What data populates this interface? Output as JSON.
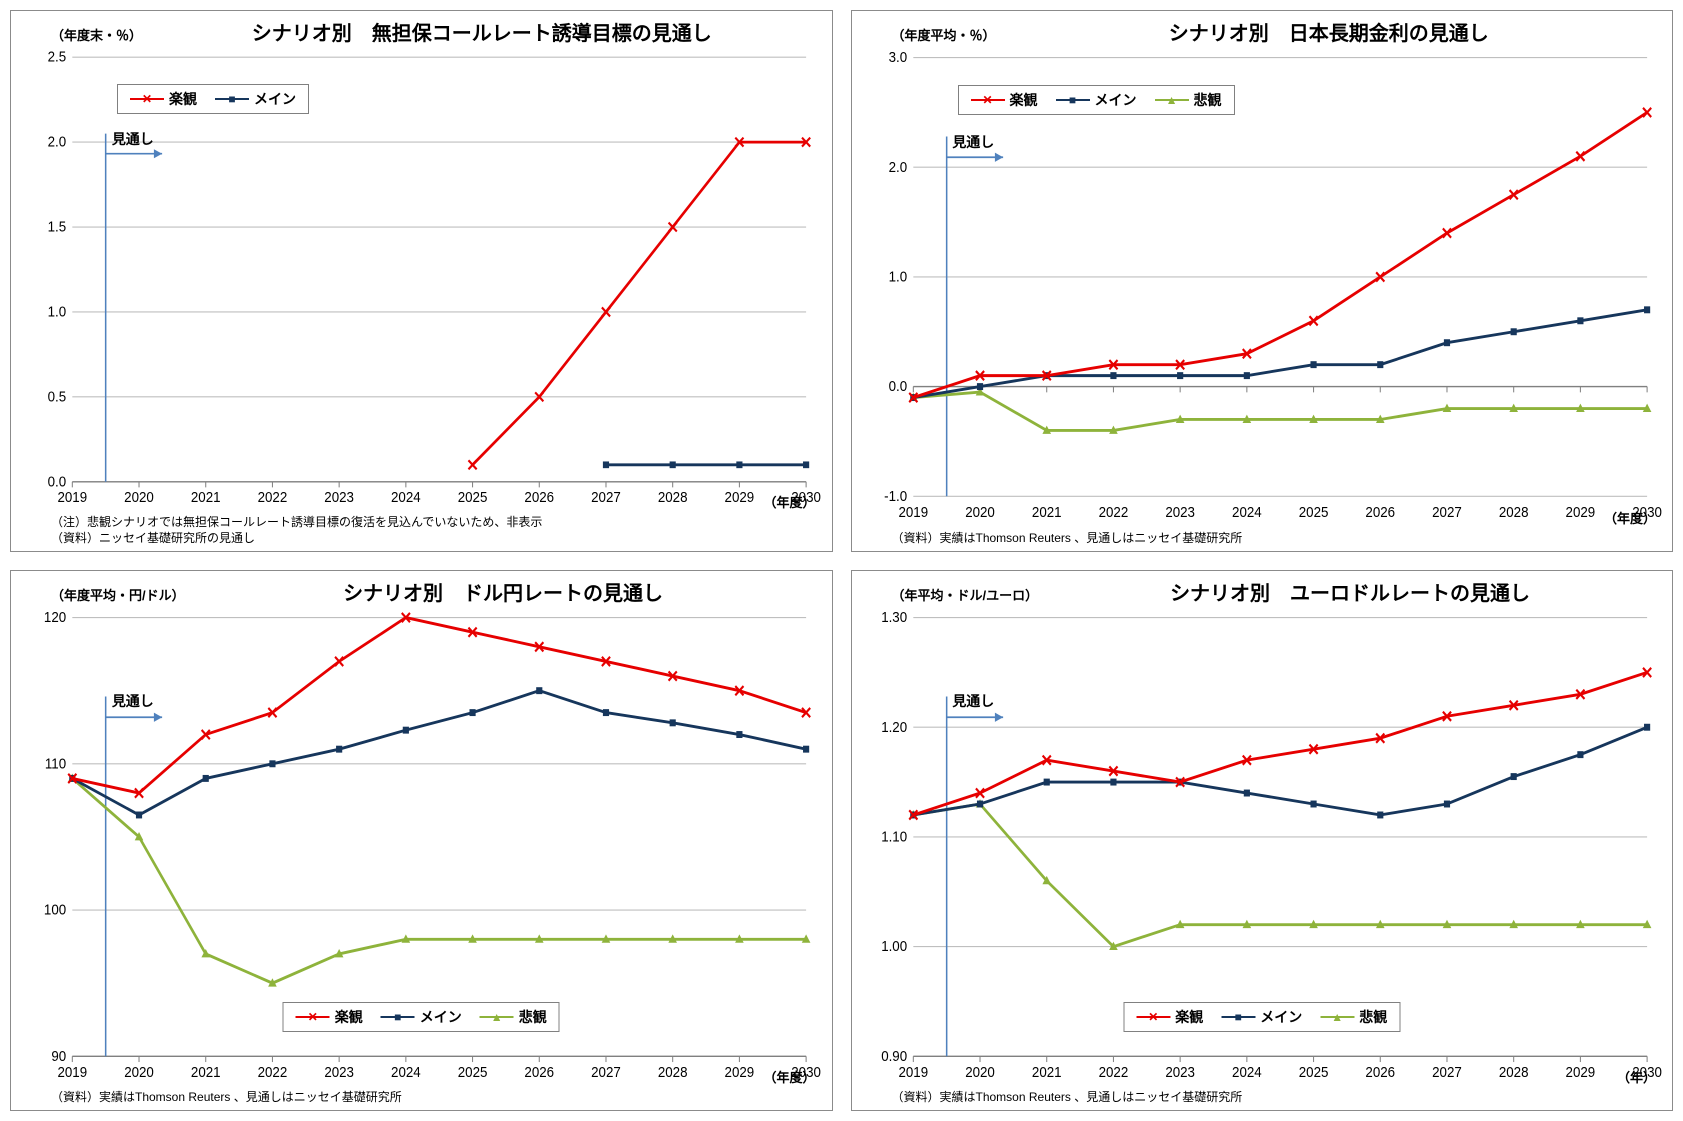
{
  "colors": {
    "optimistic": "#e60000",
    "main": "#16365c",
    "pessimistic": "#8eb33b",
    "gridline": "#bfbfbf",
    "axis": "#808080",
    "forecast_line": "#4f81bd",
    "panel_border": "#8b8b8b"
  },
  "markers": {
    "optimistic": "x",
    "main": "square",
    "pessimistic": "triangle"
  },
  "line_width": 2.5,
  "marker_size": 6,
  "label_fontsize": 13,
  "title_fontsize": 20,
  "forecast_label": "見通し",
  "legend_labels": {
    "optimistic": "楽観",
    "main": "メイン",
    "pessimistic": "悲観"
  },
  "x_years": [
    "2019",
    "2020",
    "2021",
    "2022",
    "2023",
    "2024",
    "2025",
    "2026",
    "2027",
    "2028",
    "2029",
    "2030"
  ],
  "charts": {
    "callrate": {
      "title": "シナリオ別　無担保コールレート誘導目標の見通し",
      "yaxis_label": "（年度末・％）",
      "xaxis_label": "（年度）",
      "ylim": [
        0.0,
        2.5
      ],
      "ytick_step": 0.5,
      "y_decimals": 1,
      "forecast_x_index": 0.5,
      "legend_pos": "top-left-inside",
      "series": {
        "optimistic": [
          null,
          null,
          null,
          null,
          null,
          null,
          0.1,
          0.5,
          1.0,
          1.5,
          2.0,
          2.0
        ],
        "main": [
          null,
          null,
          null,
          null,
          null,
          null,
          null,
          null,
          0.1,
          0.1,
          0.1,
          0.1
        ]
      },
      "notes": [
        "（注）悲観シナリオでは無担保コールレート誘導目標の復活を見込んでいないため、非表示",
        "（資料）ニッセイ基礎研究所の見通し"
      ]
    },
    "jgb": {
      "title": "シナリオ別　日本長期金利の見通し",
      "yaxis_label": "（年度平均・％）",
      "xaxis_label": "（年度）",
      "ylim": [
        -1.0,
        3.0
      ],
      "ytick_step": 1.0,
      "y_decimals": 1,
      "forecast_x_index": 0.5,
      "legend_pos": "top-left-inside",
      "series": {
        "optimistic": [
          -0.1,
          0.1,
          0.1,
          0.2,
          0.2,
          0.3,
          0.6,
          1.0,
          1.4,
          1.75,
          2.1,
          2.5
        ],
        "main": [
          -0.1,
          0.0,
          0.1,
          0.1,
          0.1,
          0.1,
          0.2,
          0.2,
          0.4,
          0.5,
          0.6,
          0.7
        ],
        "pessimistic": [
          -0.1,
          -0.05,
          -0.4,
          -0.4,
          -0.3,
          -0.3,
          -0.3,
          -0.3,
          -0.2,
          -0.2,
          -0.2,
          -0.2
        ]
      },
      "notes": [
        "（資料）実績はThomson Reuters 、見通しはニッセイ基礎研究所"
      ]
    },
    "usdjpy": {
      "title": "シナリオ別　ドル円レートの見通し",
      "yaxis_label": "（年度平均・円/ドル）",
      "xaxis_label": "（年度）",
      "ylim": [
        90,
        120
      ],
      "ytick_step": 10,
      "y_decimals": 0,
      "forecast_x_index": 0.5,
      "legend_pos": "bottom-center-inside",
      "series": {
        "optimistic": [
          109,
          108,
          112,
          113.5,
          117,
          120,
          119,
          118,
          117,
          116,
          115,
          113.5
        ],
        "main": [
          109,
          106.5,
          109,
          110,
          111,
          112.3,
          113.5,
          115,
          113.5,
          112.8,
          112,
          111
        ],
        "pessimistic": [
          109,
          105,
          97,
          95,
          97,
          98,
          98,
          98,
          98,
          98,
          98,
          98
        ]
      },
      "notes": [
        "（資料）実績はThomson Reuters 、見通しはニッセイ基礎研究所"
      ]
    },
    "eurusd": {
      "title": "シナリオ別　ユーロドルレートの見通し",
      "yaxis_label": "（年平均・ドル/ユーロ）",
      "xaxis_label": "（年）",
      "ylim": [
        0.9,
        1.3
      ],
      "ytick_step": 0.1,
      "y_decimals": 2,
      "forecast_x_index": 0.5,
      "legend_pos": "bottom-center-inside",
      "series": {
        "optimistic": [
          1.12,
          1.14,
          1.17,
          1.16,
          1.15,
          1.17,
          1.18,
          1.19,
          1.21,
          1.22,
          1.23,
          1.25
        ],
        "main": [
          1.12,
          1.13,
          1.15,
          1.15,
          1.15,
          1.14,
          1.13,
          1.12,
          1.13,
          1.155,
          1.175,
          1.2
        ],
        "pessimistic": [
          1.12,
          1.13,
          1.06,
          1.0,
          1.02,
          1.02,
          1.02,
          1.02,
          1.02,
          1.02,
          1.02,
          1.02
        ]
      },
      "notes": [
        "（資料）実績はThomson Reuters 、見通しはニッセイ基礎研究所"
      ]
    }
  }
}
